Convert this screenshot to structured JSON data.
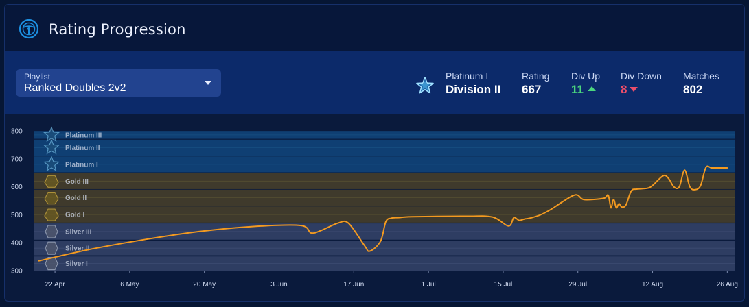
{
  "header": {
    "title": "Rating Progression",
    "icon": "steering-wheel-icon"
  },
  "playlist": {
    "label": "Playlist",
    "value": "Ranked Doubles 2v2"
  },
  "rank": {
    "tier": "Platinum I",
    "division": "Division II",
    "icon": "platinum-star-icon"
  },
  "stats": {
    "rating": {
      "label": "Rating",
      "value": "667"
    },
    "div_up": {
      "label": "Div Up",
      "value": "11"
    },
    "div_down": {
      "label": "Div Down",
      "value": "8"
    },
    "matches": {
      "label": "Matches",
      "value": "802"
    }
  },
  "colors": {
    "line": "#f39a20",
    "platinum_band": "#0f3f73",
    "gold_band": "#3f3a2c",
    "silver_band": "#2e3d62",
    "up": "#4bd67e",
    "down": "#ec4e6a"
  },
  "chart_data": {
    "type": "line",
    "title": "Rating Progression",
    "ylim": [
      300,
      820
    ],
    "yticks": [
      300,
      400,
      500,
      600,
      700,
      800
    ],
    "xlabels": [
      "22 Apr",
      "6 May",
      "20 May",
      "3 Jun",
      "17 Jun",
      "1 Jul",
      "15 Jul",
      "29 Jul",
      "12 Aug",
      "26 Aug"
    ],
    "xlabel_days": [
      3,
      17,
      31,
      45,
      59,
      73,
      87,
      101,
      115,
      129
    ],
    "xlim": [
      -1,
      130.5
    ],
    "bands": [
      {
        "name": "Silver I",
        "min": 300,
        "max": 351,
        "group": "silver"
      },
      {
        "name": "Silver II",
        "min": 355,
        "max": 406,
        "group": "silver"
      },
      {
        "name": "Silver III",
        "min": 411,
        "max": 469,
        "group": "silver"
      },
      {
        "name": "Gold I",
        "min": 472,
        "max": 530,
        "group": "gold"
      },
      {
        "name": "Gold II",
        "min": 532,
        "max": 590,
        "group": "gold"
      },
      {
        "name": "Gold III",
        "min": 592,
        "max": 649,
        "group": "gold"
      },
      {
        "name": "Platinum I",
        "min": 652,
        "max": 709,
        "group": "platinum"
      },
      {
        "name": "Platinum II",
        "min": 712,
        "max": 769,
        "group": "platinum"
      },
      {
        "name": "Platinum III",
        "min": 772,
        "max": 800,
        "group": "platinum"
      }
    ],
    "series": [
      {
        "name": "Rating",
        "x": [
          0,
          10,
          20,
          30,
          40,
          49,
          51,
          53,
          56,
          58,
          61,
          62,
          64,
          65,
          66,
          67.5,
          70,
          80,
          85,
          88,
          89,
          90,
          91,
          92,
          94,
          96,
          98,
          100,
          101,
          102,
          104,
          106,
          106.7,
          107.2,
          107.7,
          108.2,
          108.7,
          109.2,
          110,
          111,
          112,
          114,
          115,
          117,
          118,
          119,
          120,
          121,
          122,
          123,
          124,
          125,
          126,
          127,
          128,
          129
        ],
        "y": [
          335,
          378,
          412,
          440,
          458,
          462,
          435,
          445,
          470,
          470,
          390,
          370,
          405,
          475,
          488,
          490,
          493,
          495,
          492,
          460,
          490,
          480,
          485,
          488,
          500,
          520,
          545,
          568,
          570,
          555,
          555,
          560,
          570,
          525,
          555,
          525,
          540,
          528,
          535,
          585,
          592,
          595,
          605,
          640,
          630,
          600,
          600,
          660,
          600,
          590,
          605,
          670,
          668,
          668,
          668,
          668
        ]
      }
    ]
  }
}
